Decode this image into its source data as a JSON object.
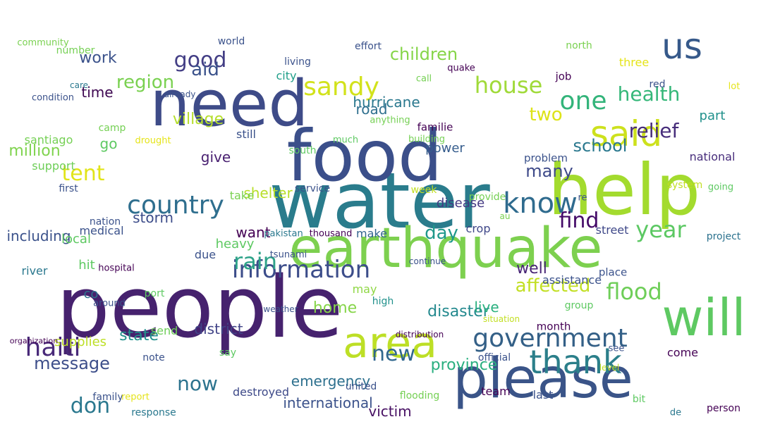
{
  "words": [
    {
      "text": "people",
      "color": "#46226e"
    },
    {
      "text": "water",
      "color": "#2a7c8c"
    },
    {
      "text": "food",
      "color": "#3b4f8a"
    },
    {
      "text": "earthquake",
      "color": "#7dd04f"
    },
    {
      "text": "help",
      "color": "#a3db2e"
    },
    {
      "text": "need",
      "color": "#3e4b88"
    },
    {
      "text": "please",
      "color": "#3a5488"
    },
    {
      "text": "will",
      "color": "#5ec962"
    },
    {
      "text": "area",
      "color": "#bddf26"
    },
    {
      "text": "us",
      "color": "#36598a"
    },
    {
      "text": "thank",
      "color": "#2b7f8a"
    },
    {
      "text": "said",
      "color": "#cde11d"
    },
    {
      "text": "information",
      "color": "#3c4d8a"
    },
    {
      "text": "government",
      "color": "#346087"
    },
    {
      "text": "haiti",
      "color": "#482979"
    },
    {
      "text": "know",
      "color": "#2f6b8e"
    },
    {
      "text": "country",
      "color": "#2e6e8e"
    },
    {
      "text": "rain",
      "color": "#2ea389"
    },
    {
      "text": "sandy",
      "color": "#d2e21b"
    },
    {
      "text": "one",
      "color": "#33b47a"
    },
    {
      "text": "house",
      "color": "#a0da39"
    },
    {
      "text": "good",
      "color": "#433e85"
    },
    {
      "text": "find",
      "color": "#440a68"
    },
    {
      "text": "year",
      "color": "#5cc863"
    },
    {
      "text": "flood",
      "color": "#6ece58"
    },
    {
      "text": "new",
      "color": "#31688e"
    },
    {
      "text": "relief",
      "color": "#472d7b"
    },
    {
      "text": "health",
      "color": "#35b779"
    },
    {
      "text": "tent",
      "color": "#e1e419"
    },
    {
      "text": "don",
      "color": "#2a788e"
    },
    {
      "text": "now",
      "color": "#2c738e"
    },
    {
      "text": "message",
      "color": "#3d4e8a"
    },
    {
      "text": "two",
      "color": "#dde318"
    },
    {
      "text": "affected",
      "color": "#c2df23"
    },
    {
      "text": "day",
      "color": "#1f988b"
    },
    {
      "text": "region",
      "color": "#7ad151"
    },
    {
      "text": "children",
      "color": "#86d549"
    },
    {
      "text": "school",
      "color": "#2a788e"
    },
    {
      "text": "aid",
      "color": "#3b528b"
    },
    {
      "text": "village",
      "color": "#b5de2b"
    },
    {
      "text": "many",
      "color": "#3e4a89"
    },
    {
      "text": "well",
      "color": "#482576"
    },
    {
      "text": "disaster",
      "color": "#23898e"
    },
    {
      "text": "province",
      "color": "#29af7f"
    },
    {
      "text": "home",
      "color": "#86d549"
    },
    {
      "text": "state",
      "color": "#21918c"
    },
    {
      "text": "district",
      "color": "#414487"
    },
    {
      "text": "victim",
      "color": "#471063"
    },
    {
      "text": "international",
      "color": "#3b528b"
    },
    {
      "text": "emergency",
      "color": "#2d708e"
    },
    {
      "text": "work",
      "color": "#3b528b"
    },
    {
      "text": "million",
      "color": "#7fd34e"
    },
    {
      "text": "hurricane",
      "color": "#2a788e"
    },
    {
      "text": "road",
      "color": "#2e6f8e"
    },
    {
      "text": "shelter",
      "color": "#b8de29"
    },
    {
      "text": "storm",
      "color": "#3d4d8a"
    },
    {
      "text": "live",
      "color": "#2ab07f"
    },
    {
      "text": "time",
      "color": "#3e0751"
    },
    {
      "text": "including",
      "color": "#3b528b"
    },
    {
      "text": "give",
      "color": "#481f70"
    },
    {
      "text": "want",
      "color": "#440154"
    },
    {
      "text": "go",
      "color": "#5ec962"
    },
    {
      "text": "supplies",
      "color": "#bddf26"
    },
    {
      "text": "local",
      "color": "#5ec962"
    },
    {
      "text": "co",
      "color": "#2c728e"
    },
    {
      "text": "power",
      "color": "#365d8d"
    },
    {
      "text": "disease",
      "color": "#443983"
    },
    {
      "text": "heavy",
      "color": "#5ec962"
    },
    {
      "text": "hit",
      "color": "#5ec962"
    },
    {
      "text": "may",
      "color": "#8fd744"
    },
    {
      "text": "make",
      "color": "#32648e"
    },
    {
      "text": "crop",
      "color": "#3f4788"
    },
    {
      "text": "street",
      "color": "#3f4889"
    },
    {
      "text": "assistance",
      "color": "#3b528b"
    },
    {
      "text": "part",
      "color": "#21918c"
    },
    {
      "text": "national",
      "color": "#472d7b"
    },
    {
      "text": "medical",
      "color": "#3b528b"
    },
    {
      "text": "river",
      "color": "#2a788e"
    },
    {
      "text": "santiago",
      "color": "#75d054"
    },
    {
      "text": "support",
      "color": "#6ece58"
    },
    {
      "text": "still",
      "color": "#3b528b"
    },
    {
      "text": "take",
      "color": "#7ad151"
    },
    {
      "text": "due",
      "color": "#3b528b"
    },
    {
      "text": "city",
      "color": "#1f9e89"
    },
    {
      "text": "familie",
      "color": "#440154"
    },
    {
      "text": "send",
      "color": "#6ece58"
    },
    {
      "text": "destroyed",
      "color": "#3e4a89"
    },
    {
      "text": "place",
      "color": "#3b528b"
    },
    {
      "text": "month",
      "color": "#440154"
    },
    {
      "text": "come",
      "color": "#440154"
    },
    {
      "text": "problem",
      "color": "#3b528b"
    },
    {
      "text": "person",
      "color": "#440154"
    },
    {
      "text": "project",
      "color": "#2c728e"
    },
    {
      "text": "nation",
      "color": "#3b528b"
    },
    {
      "text": "first",
      "color": "#3b528b"
    },
    {
      "text": "job",
      "color": "#440154"
    },
    {
      "text": "group",
      "color": "#5ec962"
    },
    {
      "text": "number",
      "color": "#75d054"
    },
    {
      "text": "north",
      "color": "#7ad151"
    },
    {
      "text": "three",
      "color": "#e5e419"
    },
    {
      "text": "world",
      "color": "#3b528b"
    },
    {
      "text": "effort",
      "color": "#3b528b"
    },
    {
      "text": "living",
      "color": "#3b528b"
    },
    {
      "text": "community",
      "color": "#7ad151"
    },
    {
      "text": "condition",
      "color": "#3b528b"
    },
    {
      "text": "quake",
      "color": "#440154"
    },
    {
      "text": "red",
      "color": "#3b528b"
    },
    {
      "text": "lot",
      "color": "#e5e419"
    },
    {
      "text": "care",
      "color": "#2a788e"
    },
    {
      "text": "already",
      "color": "#3b528b"
    },
    {
      "text": "camp",
      "color": "#75d054"
    },
    {
      "text": "drought",
      "color": "#e5e419"
    },
    {
      "text": "much",
      "color": "#5ec962"
    },
    {
      "text": "building",
      "color": "#75d054"
    },
    {
      "text": "anything",
      "color": "#75d054"
    },
    {
      "text": "south",
      "color": "#5ec962"
    },
    {
      "text": "call",
      "color": "#75d054"
    },
    {
      "text": "service",
      "color": "#3b528b"
    },
    {
      "text": "week",
      "color": "#c2df23"
    },
    {
      "text": "provide",
      "color": "#75d054"
    },
    {
      "text": "system",
      "color": "#c2df23"
    },
    {
      "text": "going",
      "color": "#5ec962"
    },
    {
      "text": "re",
      "color": "#3b528b"
    },
    {
      "text": "au",
      "color": "#7ad151"
    },
    {
      "text": "pakistan",
      "color": "#2a788e"
    },
    {
      "text": "thousand",
      "color": "#440154"
    },
    {
      "text": "tsunami",
      "color": "#3b528b"
    },
    {
      "text": "continue",
      "color": "#3b528b"
    },
    {
      "text": "hospital",
      "color": "#440154"
    },
    {
      "text": "port",
      "color": "#5ec962"
    },
    {
      "text": "around",
      "color": "#3b528b"
    },
    {
      "text": "weather",
      "color": "#3b528b"
    },
    {
      "text": "high",
      "color": "#21918c"
    },
    {
      "text": "situation",
      "color": "#c2df23"
    },
    {
      "text": "distribution",
      "color": "#440154"
    },
    {
      "text": "organization",
      "color": "#440154"
    },
    {
      "text": "say",
      "color": "#5ec962"
    },
    {
      "text": "note",
      "color": "#3b528b"
    },
    {
      "text": "official",
      "color": "#3b528b"
    },
    {
      "text": "see",
      "color": "#3b528b"
    },
    {
      "text": "level",
      "color": "#c2df23"
    },
    {
      "text": "united",
      "color": "#3b528b"
    },
    {
      "text": "flooding",
      "color": "#75d054"
    },
    {
      "text": "team",
      "color": "#440154"
    },
    {
      "text": "last",
      "color": "#3b528b"
    },
    {
      "text": "family",
      "color": "#3b528b"
    },
    {
      "text": "report",
      "color": "#e5e419"
    },
    {
      "text": "response",
      "color": "#2a788e"
    },
    {
      "text": "bit",
      "color": "#5ec962"
    },
    {
      "text": "de",
      "color": "#2a788e"
    }
  ]
}
